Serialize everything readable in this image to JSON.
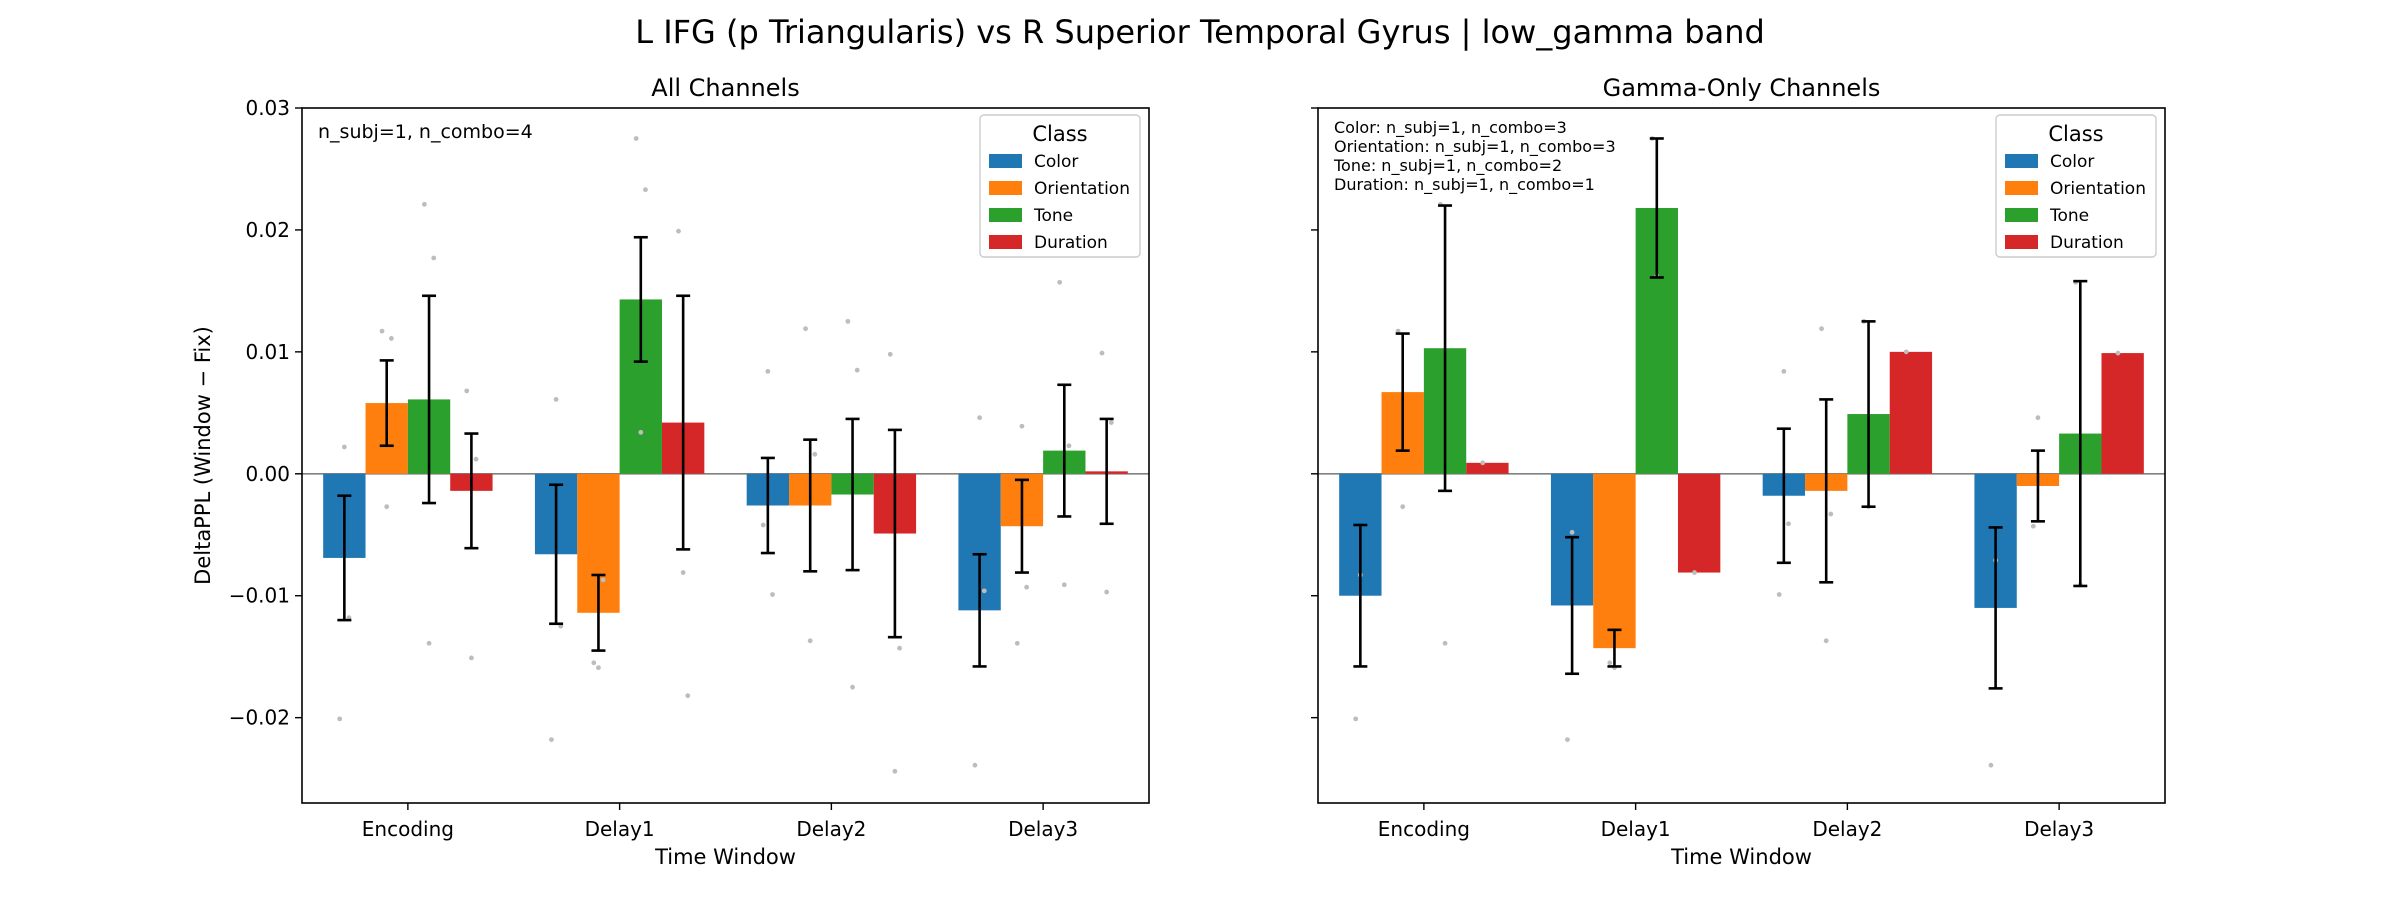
{
  "figure": {
    "title": "L IFG (p Triangularis) vs R Superior Temporal Gyrus  |  low_gamma band"
  },
  "chart_data": [
    {
      "type": "bar",
      "title": "All Channels",
      "xlabel": "Time Window",
      "ylabel": "DeltaPPL (Window − Fix)",
      "ylim": [
        -0.027,
        0.03
      ],
      "yticks": [
        -0.02,
        -0.01,
        0.0,
        0.01,
        0.02,
        0.03
      ],
      "ytick_labels": [
        "−0.02",
        "−0.01",
        "0.00",
        "0.01",
        "0.02",
        "0.03"
      ],
      "show_ytick_labels": true,
      "categories": [
        "Encoding",
        "Delay1",
        "Delay2",
        "Delay3"
      ],
      "legend": {
        "title": "Class",
        "position": "top-right"
      },
      "annotations": [
        "n_subj=1, n_combo=4"
      ],
      "series": [
        {
          "name": "Color",
          "color": "#1f77b4",
          "values": [
            -0.0069,
            -0.0066,
            -0.0026,
            -0.0112
          ],
          "err": [
            0.0051,
            0.0057,
            0.0039,
            0.0046
          ],
          "scatter": [
            [
              -0.0201,
              0.0022,
              -0.0118
            ],
            [
              -0.0218,
              0.0061,
              -0.0125
            ],
            [
              -0.0042,
              0.0084,
              -0.0099
            ],
            [
              -0.0239,
              0.0046,
              -0.0096
            ]
          ]
        },
        {
          "name": "Orientation",
          "color": "#ff7f0e",
          "values": [
            0.0058,
            -0.0114,
            -0.0026,
            -0.0043
          ],
          "err": [
            0.0035,
            0.0031,
            0.0054,
            0.0038
          ],
          "scatter": [
            [
              0.0117,
              -0.0027,
              0.0111
            ],
            [
              -0.0155,
              -0.0159,
              -0.0087
            ],
            [
              0.0119,
              -0.0137,
              0.0016
            ],
            [
              -0.0139,
              0.0039,
              -0.0093
            ]
          ]
        },
        {
          "name": "Tone",
          "color": "#2ca02c",
          "values": [
            0.0061,
            0.0143,
            -0.0017,
            0.0019
          ],
          "err": [
            0.0085,
            0.0051,
            0.0062,
            0.0054
          ],
          "scatter": [
            [
              0.0221,
              -0.0139,
              0.0177
            ],
            [
              0.0275,
              0.0034,
              0.0233
            ],
            [
              0.0125,
              -0.0175,
              0.0085
            ],
            [
              0.0157,
              -0.0091,
              0.0023
            ]
          ]
        },
        {
          "name": "Duration",
          "color": "#d62728",
          "values": [
            -0.0014,
            0.0042,
            -0.0049,
            0.0002
          ],
          "err": [
            0.0047,
            0.0104,
            0.0085,
            0.0043
          ],
          "scatter": [
            [
              0.0068,
              -0.0151,
              0.0012
            ],
            [
              0.0199,
              -0.0081,
              -0.0182
            ],
            [
              0.0098,
              -0.0244,
              -0.0143
            ],
            [
              0.0099,
              -0.0097,
              0.0042
            ]
          ]
        }
      ]
    },
    {
      "type": "bar",
      "title": "Gamma-Only Channels",
      "xlabel": "Time Window",
      "ylabel": "",
      "ylim": [
        -0.027,
        0.03
      ],
      "yticks": [
        -0.02,
        -0.01,
        0.0,
        0.01,
        0.02,
        0.03
      ],
      "ytick_labels": [
        "",
        "",
        "",
        "",
        "",
        ""
      ],
      "show_ytick_labels": false,
      "categories": [
        "Encoding",
        "Delay1",
        "Delay2",
        "Delay3"
      ],
      "legend": {
        "title": "Class",
        "position": "top-right"
      },
      "annotations": [
        "Color: n_subj=1, n_combo=3",
        "Orientation: n_subj=1, n_combo=3",
        "Tone: n_subj=1, n_combo=2",
        "Duration: n_subj=1, n_combo=1"
      ],
      "series": [
        {
          "name": "Color",
          "color": "#1f77b4",
          "values": [
            -0.01,
            -0.0108,
            -0.0018,
            -0.011
          ],
          "err": [
            0.0058,
            0.0056,
            0.0055,
            0.0066
          ],
          "scatter": [
            [
              -0.0201,
              -0.0083
            ],
            [
              -0.0218,
              -0.0048
            ],
            [
              -0.0099,
              0.0084,
              -0.0041
            ],
            [
              -0.0239,
              -0.0071
            ]
          ]
        },
        {
          "name": "Orientation",
          "color": "#ff7f0e",
          "values": [
            0.0067,
            -0.0143,
            -0.0014,
            -0.001
          ],
          "err": [
            0.0048,
            0.0015,
            0.0075,
            0.0029
          ],
          "scatter": [
            [
              0.0117,
              -0.0027
            ],
            [
              -0.0155,
              -0.0159
            ],
            [
              0.0119,
              -0.0137,
              -0.0033
            ],
            [
              -0.0043,
              0.0046
            ]
          ]
        },
        {
          "name": "Tone",
          "color": "#2ca02c",
          "values": [
            0.0103,
            0.0218,
            0.0049,
            0.0033
          ],
          "err": [
            0.0117,
            0.0057,
            0.0076,
            0.0125
          ],
          "scatter": [
            [
              0.0221,
              -0.0139
            ],
            [
              0.0275,
              0.0162
            ],
            [
              0.0125,
              -0.0027
            ],
            [
              0.0157,
              -0.0091
            ]
          ]
        },
        {
          "name": "Duration",
          "color": "#d62728",
          "values": [
            0.0009,
            -0.0081,
            0.01,
            0.0099
          ],
          "err": [
            0,
            0,
            0,
            0
          ],
          "scatter": [
            [
              0.0009
            ],
            [
              -0.0081
            ],
            [
              0.01
            ],
            [
              0.0099
            ]
          ]
        }
      ]
    }
  ]
}
